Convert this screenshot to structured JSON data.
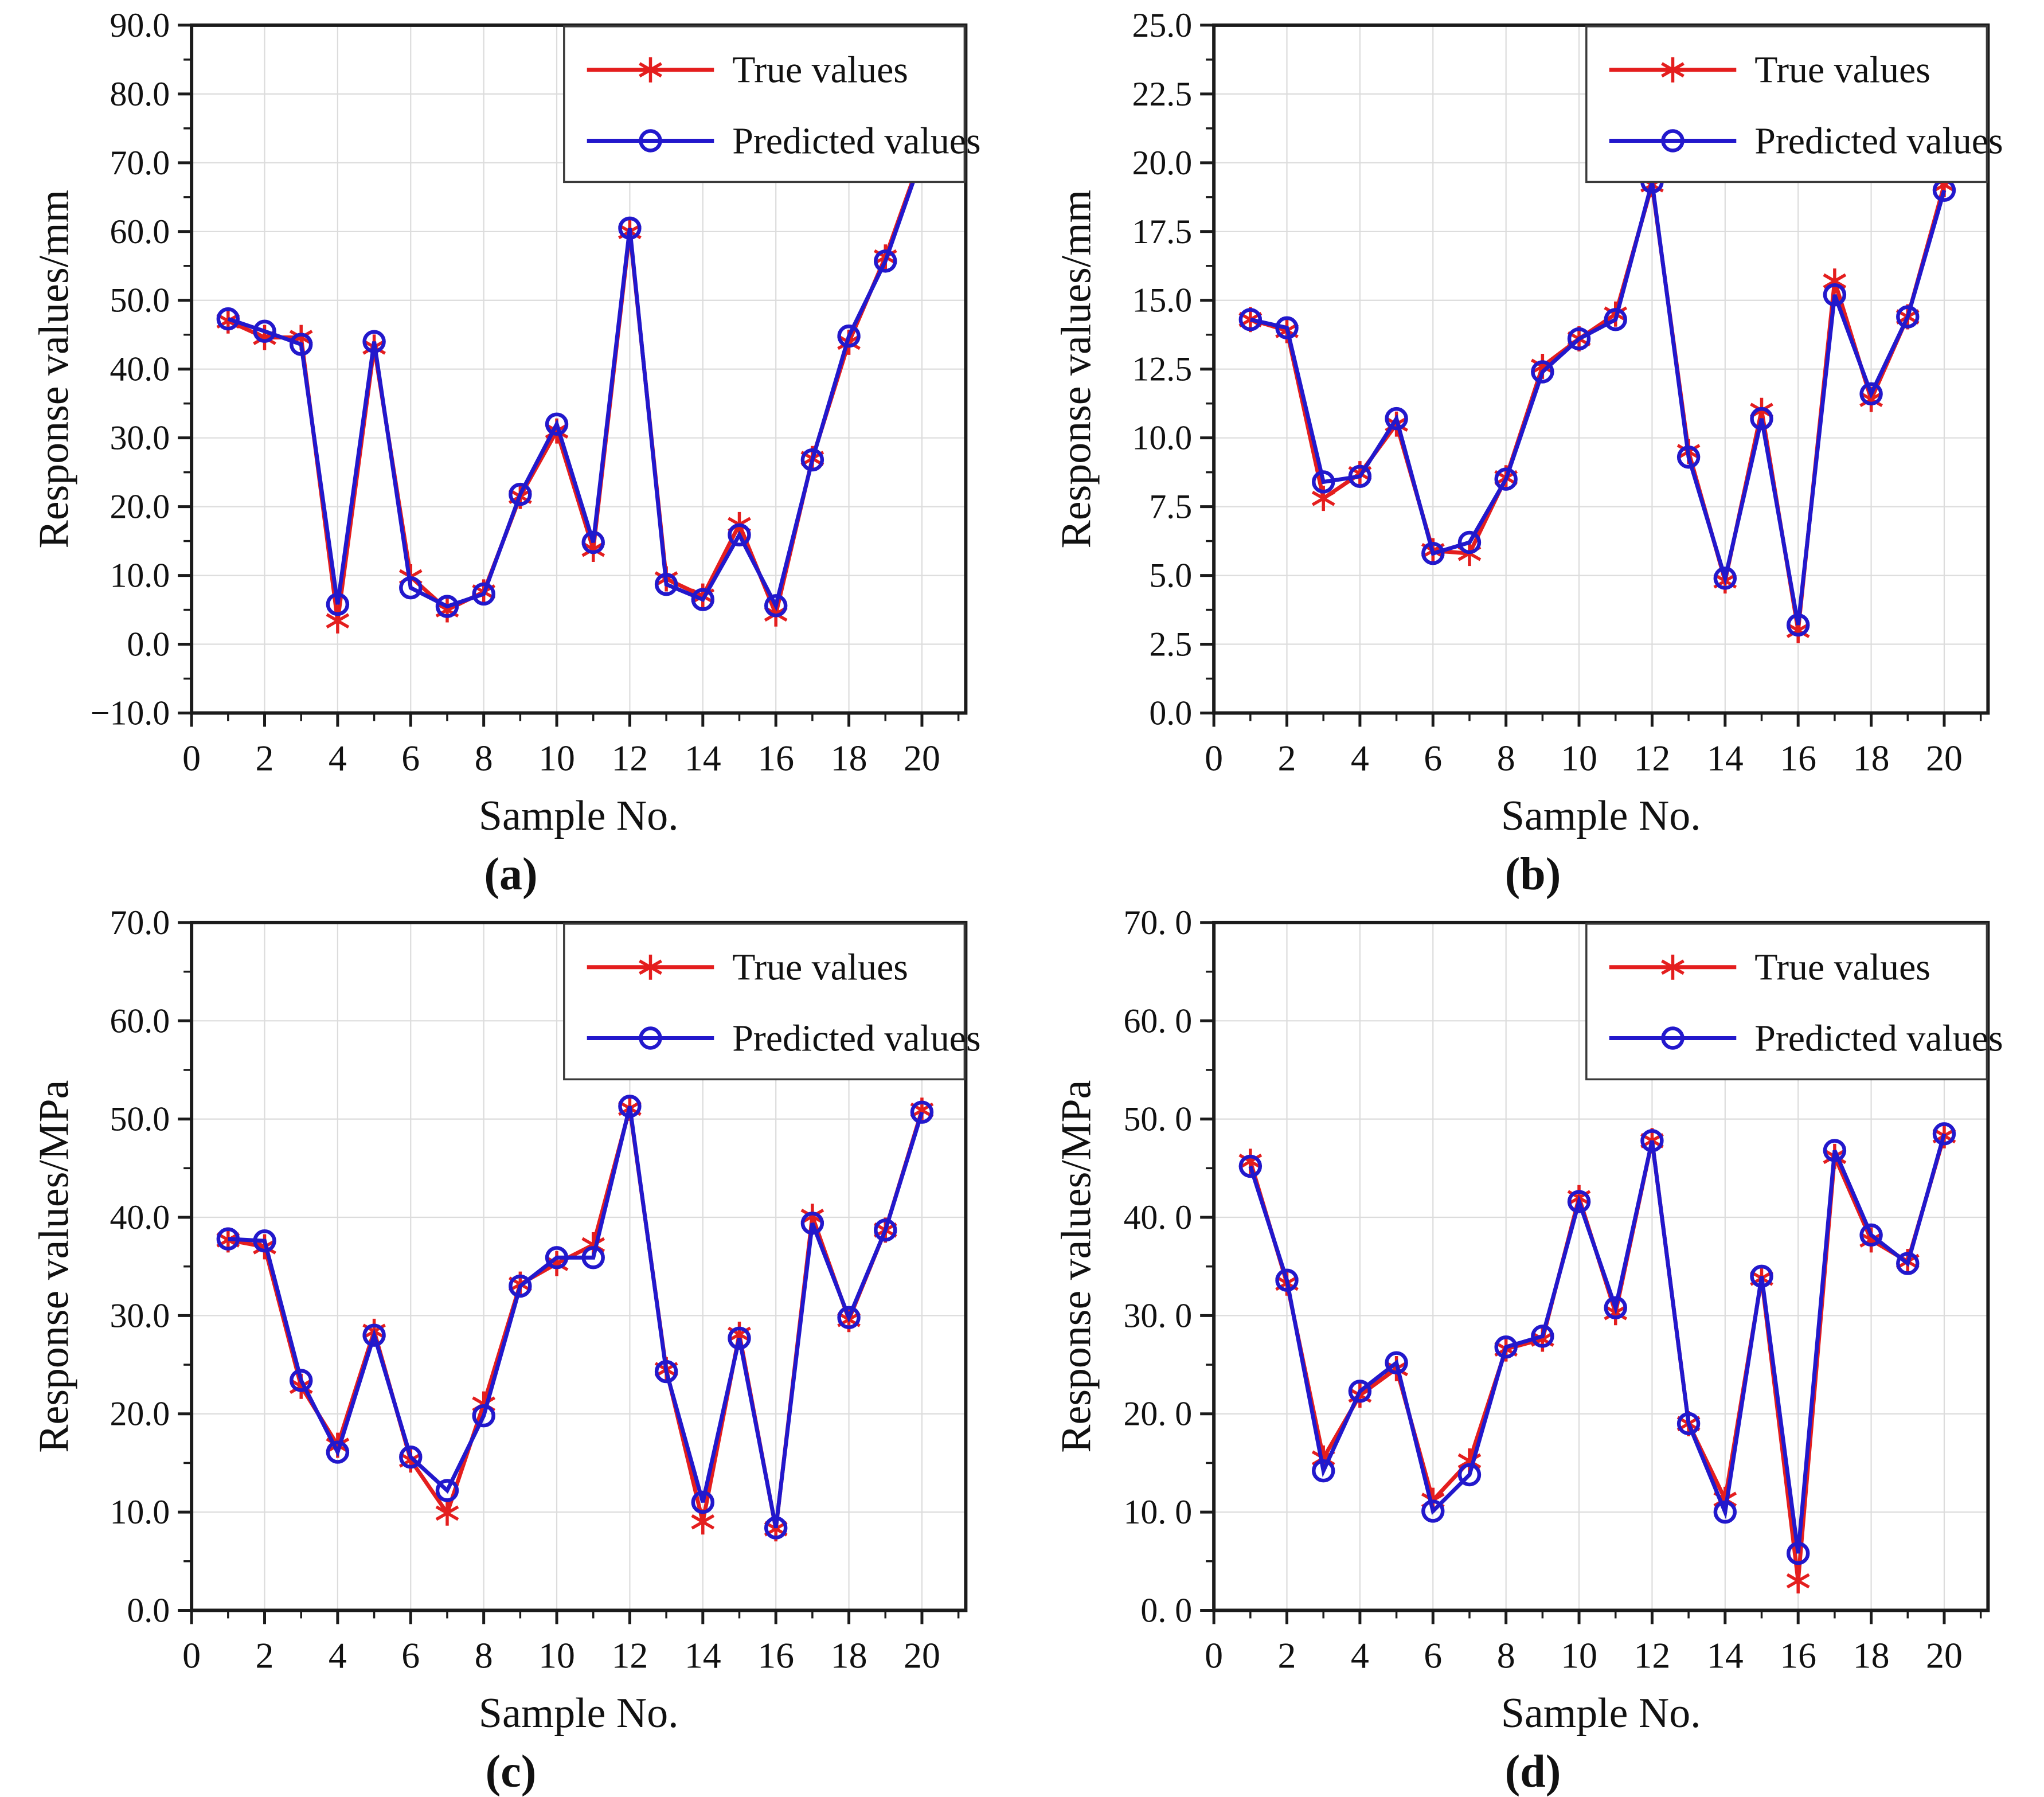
{
  "figure": {
    "description": "Four line charts comparing true and predicted response values for 20 samples",
    "accent_red": "#e41e1e",
    "accent_blue": "#2218cc",
    "grid_color": "#dcdcdc",
    "axis_color": "#1b1b1b"
  },
  "chart_data": [
    {
      "id": "a",
      "type": "line",
      "caption": "(a)",
      "xlabel": "Sample No.",
      "ylabel": "Response values/mm",
      "x": [
        1,
        2,
        3,
        4,
        5,
        6,
        7,
        8,
        9,
        10,
        11,
        12,
        13,
        14,
        15,
        16,
        17,
        18,
        19,
        20
      ],
      "series": [
        {
          "name": "True values",
          "color": "#e41e1e",
          "marker": "star",
          "values": [
            47.0,
            44.6,
            44.6,
            3.4,
            43.2,
            9.8,
            5.0,
            7.6,
            21.5,
            31.0,
            13.8,
            60.0,
            9.5,
            7.0,
            17.4,
            4.4,
            27.0,
            43.9,
            56.3,
            71.2
          ]
        },
        {
          "name": "Predicted values",
          "color": "#2218cc",
          "marker": "circle",
          "values": [
            47.3,
            45.5,
            43.6,
            5.8,
            44.0,
            8.2,
            5.5,
            7.3,
            21.8,
            32.0,
            14.8,
            60.5,
            8.7,
            6.5,
            15.9,
            5.6,
            26.8,
            44.8,
            55.7,
            70.9
          ]
        }
      ],
      "xlim": [
        0,
        21.2
      ],
      "ylim": [
        -10,
        90
      ],
      "x_tick_values": [
        0,
        2,
        4,
        6,
        8,
        10,
        12,
        14,
        16,
        18,
        20
      ],
      "x_tick_labels": [
        "0",
        "2",
        "4",
        "6",
        "8",
        "10",
        "12",
        "14",
        "16",
        "18",
        "20"
      ],
      "y_tick_values": [
        90,
        80,
        70,
        60,
        50,
        40,
        30,
        20,
        10,
        0,
        -10
      ],
      "y_tick_labels": [
        "90.0",
        "80.0",
        "70.0",
        "60.0",
        "50.0",
        "40.0",
        "30.0",
        "20.0",
        "10.0",
        "0.0",
        "−10.0"
      ],
      "y_minor_step": 5,
      "x_minor_step": 1,
      "grid": true,
      "legend_position": "top-right"
    },
    {
      "id": "b",
      "type": "line",
      "caption": "(b)",
      "xlabel": "Sample No.",
      "ylabel": "Response values/mm",
      "x": [
        1,
        2,
        3,
        4,
        5,
        6,
        7,
        8,
        9,
        10,
        11,
        12,
        13,
        14,
        15,
        16,
        17,
        18,
        19,
        20
      ],
      "series": [
        {
          "name": "True values",
          "color": "#e41e1e",
          "marker": "star",
          "values": [
            14.3,
            13.9,
            7.8,
            8.7,
            10.5,
            5.9,
            5.8,
            8.55,
            12.6,
            13.6,
            14.5,
            19.2,
            9.5,
            4.8,
            11.0,
            3.0,
            15.7,
            11.4,
            14.4,
            19.2
          ]
        },
        {
          "name": "Predicted values",
          "color": "#2218cc",
          "marker": "circle",
          "values": [
            14.3,
            14.0,
            8.4,
            8.6,
            10.7,
            5.8,
            6.2,
            8.5,
            12.4,
            13.6,
            14.3,
            19.3,
            9.3,
            4.9,
            10.7,
            3.2,
            15.2,
            11.6,
            14.4,
            19.0
          ]
        }
      ],
      "xlim": [
        0,
        21.2
      ],
      "ylim": [
        0,
        25
      ],
      "x_tick_values": [
        0,
        2,
        4,
        6,
        8,
        10,
        12,
        14,
        16,
        18,
        20
      ],
      "x_tick_labels": [
        "0",
        "2",
        "4",
        "6",
        "8",
        "10",
        "12",
        "14",
        "16",
        "18",
        "20"
      ],
      "y_tick_values": [
        25,
        22.5,
        20,
        17.5,
        15,
        12.5,
        10,
        7.5,
        5,
        2.5,
        0
      ],
      "y_tick_labels": [
        "25.0",
        "22.5",
        "20.0",
        "17.5",
        "15.0",
        "12.5",
        "10.0",
        "7.5",
        "5.0",
        "2.5",
        "0.0"
      ],
      "y_minor_step": 1.25,
      "x_minor_step": 1,
      "grid": true,
      "legend_position": "top-right"
    },
    {
      "id": "c",
      "type": "line",
      "caption": "(c)",
      "xlabel": "Sample No.",
      "ylabel": "Response values/MPa",
      "x": [
        1,
        2,
        3,
        4,
        5,
        6,
        7,
        8,
        9,
        10,
        11,
        12,
        13,
        14,
        15,
        16,
        17,
        18,
        19,
        20
      ],
      "series": [
        {
          "name": "True values",
          "color": "#e41e1e",
          "marker": "star",
          "values": [
            37.7,
            37.0,
            22.8,
            16.8,
            28.4,
            15.3,
            9.9,
            21.0,
            33.2,
            35.3,
            37.2,
            51.1,
            24.5,
            9.0,
            28.1,
            8.3,
            40.1,
            29.6,
            38.7,
            50.9
          ]
        },
        {
          "name": "Predicted values",
          "color": "#2218cc",
          "marker": "circle",
          "values": [
            37.8,
            37.6,
            23.4,
            16.1,
            28.0,
            15.6,
            12.2,
            19.8,
            33.0,
            35.9,
            35.9,
            51.3,
            24.3,
            11.0,
            27.7,
            8.4,
            39.4,
            29.8,
            38.7,
            50.7
          ]
        }
      ],
      "xlim": [
        0,
        21.2
      ],
      "ylim": [
        0,
        70
      ],
      "x_tick_values": [
        0,
        2,
        4,
        6,
        8,
        10,
        12,
        14,
        16,
        18,
        20
      ],
      "x_tick_labels": [
        "0",
        "2",
        "4",
        "6",
        "8",
        "10",
        "12",
        "14",
        "16",
        "18",
        "20"
      ],
      "y_tick_values": [
        70,
        60,
        50,
        40,
        30,
        20,
        10,
        0
      ],
      "y_tick_labels": [
        "70.0",
        "60.0",
        "50.0",
        "40.0",
        "30.0",
        "20.0",
        "10.0",
        "0.0"
      ],
      "y_minor_step": 5,
      "x_minor_step": 1,
      "grid": true,
      "legend_position": "top-right"
    },
    {
      "id": "d",
      "type": "line",
      "caption": "(d)",
      "xlabel": "Sample No.",
      "ylabel": "Response values/MPa",
      "x": [
        1,
        2,
        3,
        4,
        5,
        6,
        7,
        8,
        9,
        10,
        11,
        12,
        13,
        14,
        15,
        16,
        17,
        18,
        19,
        20
      ],
      "series": [
        {
          "name": "True values",
          "color": "#e41e1e",
          "marker": "star",
          "values": [
            45.7,
            33.3,
            15.5,
            21.9,
            24.6,
            11.2,
            15.2,
            26.6,
            27.6,
            42.0,
            30.3,
            47.8,
            19.0,
            11.3,
            33.8,
            3.0,
            46.2,
            37.7,
            35.5,
            48.3
          ]
        },
        {
          "name": "Predicted values",
          "color": "#2218cc",
          "marker": "circle",
          "values": [
            45.2,
            33.6,
            14.2,
            22.3,
            25.2,
            10.1,
            13.8,
            26.8,
            27.9,
            41.6,
            30.8,
            47.8,
            19.0,
            10.0,
            34.0,
            5.8,
            46.8,
            38.2,
            35.3,
            48.5
          ]
        }
      ],
      "xlim": [
        0,
        21.2
      ],
      "ylim": [
        0,
        70
      ],
      "x_tick_values": [
        0,
        2,
        4,
        6,
        8,
        10,
        12,
        14,
        16,
        18,
        20
      ],
      "x_tick_labels": [
        "0",
        "2",
        "4",
        "6",
        "8",
        "10",
        "12",
        "14",
        "16",
        "18",
        "20"
      ],
      "y_tick_values": [
        70,
        60,
        50,
        40,
        30,
        20,
        10,
        0
      ],
      "y_tick_labels": [
        "70. 0",
        "60. 0",
        "50. 0",
        "40. 0",
        "30. 0",
        "20. 0",
        "10. 0",
        "0. 0"
      ],
      "y_minor_step": 5,
      "x_minor_step": 1,
      "grid": true,
      "legend_position": "top-right"
    }
  ]
}
